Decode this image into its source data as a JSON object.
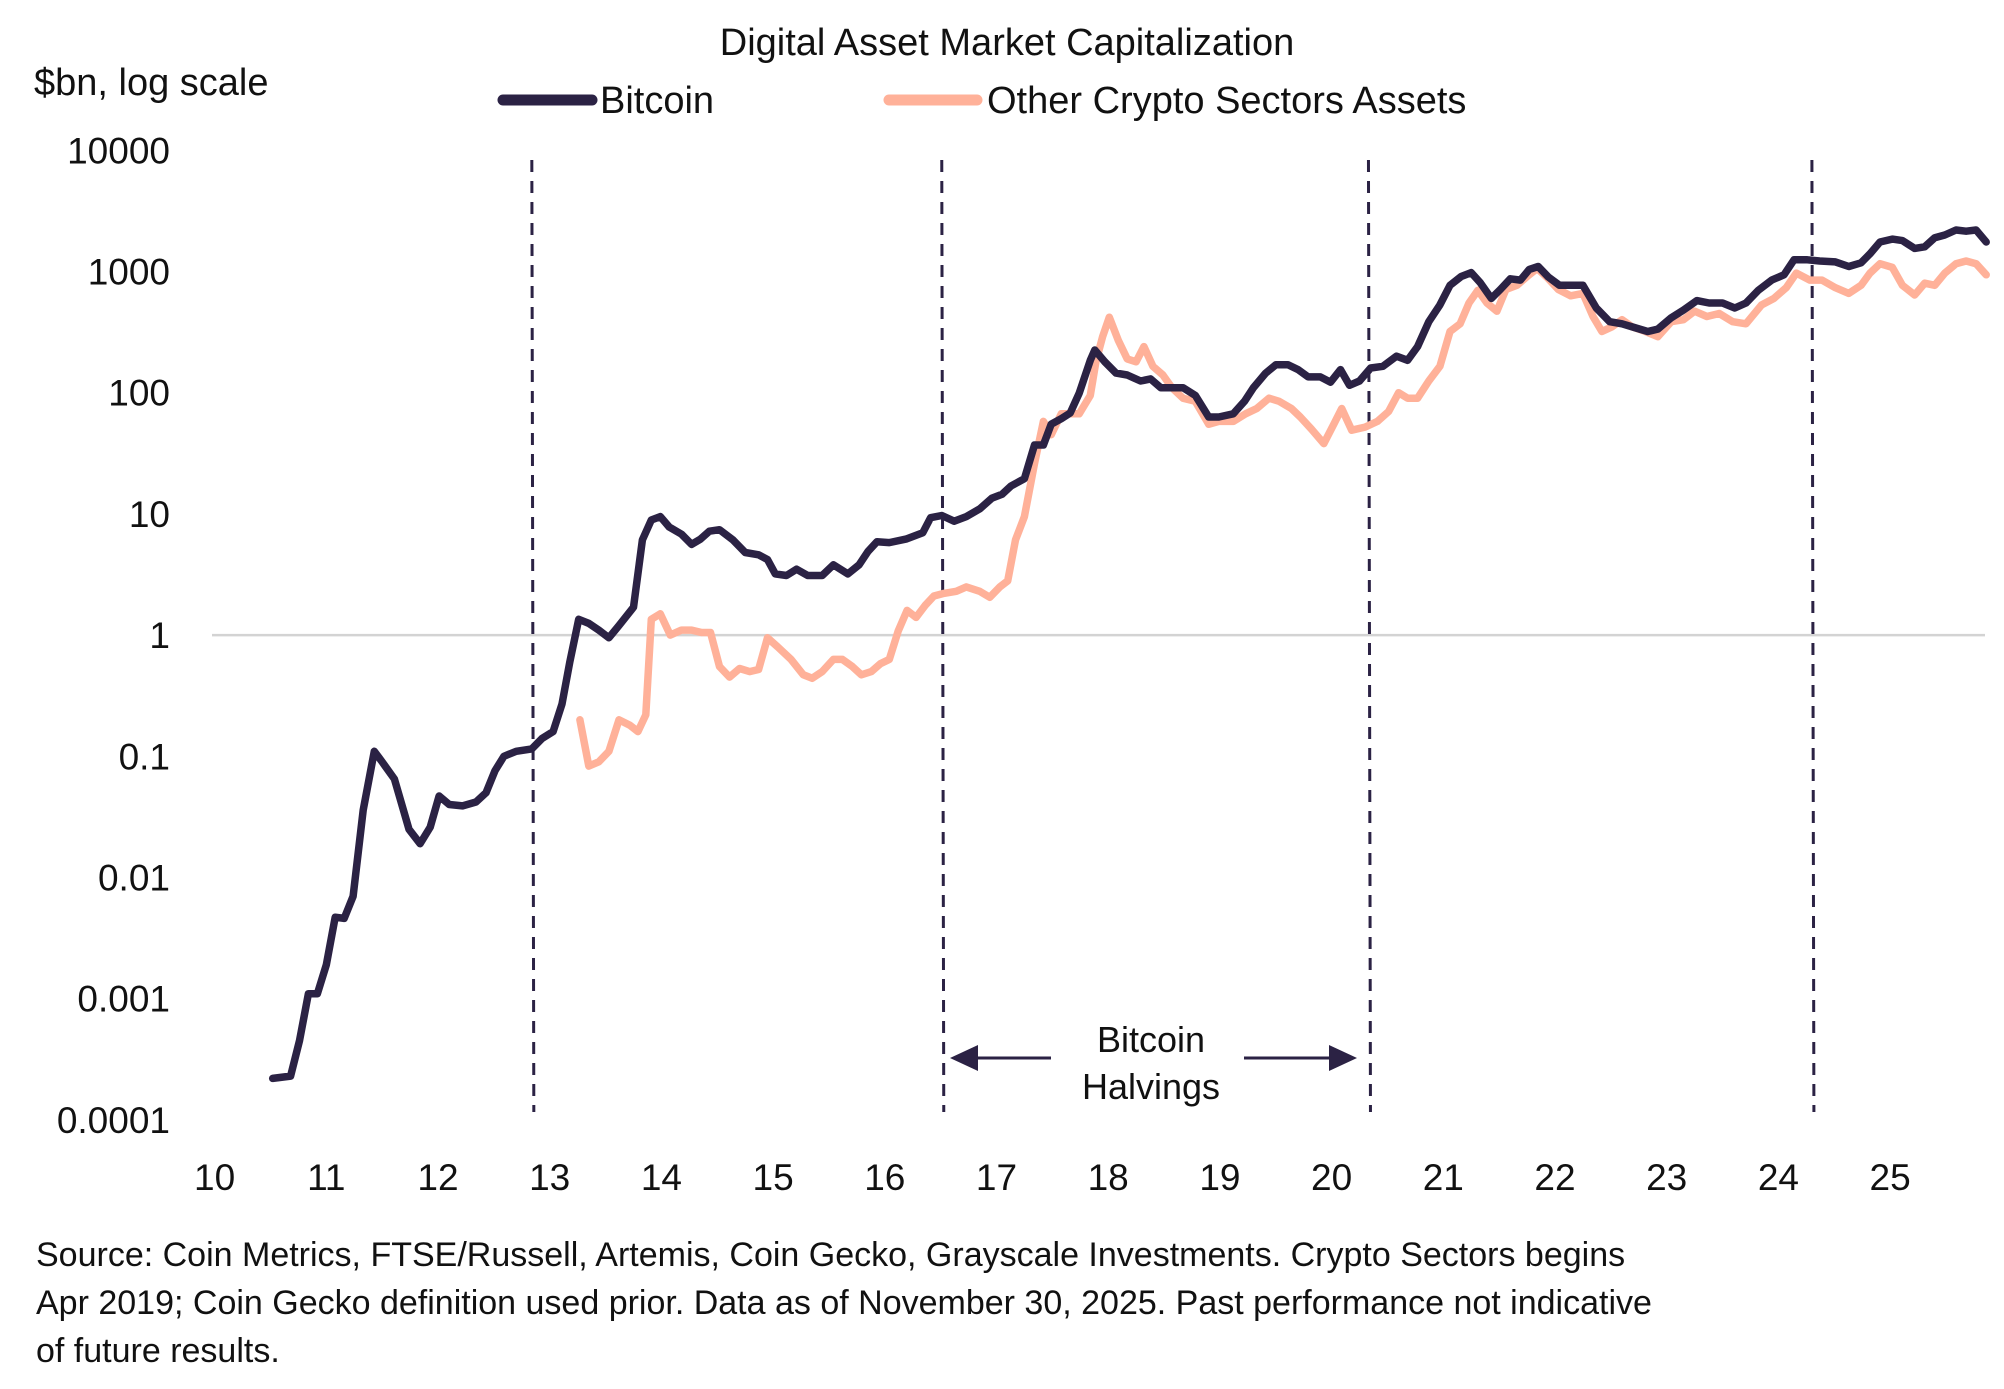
{
  "chart_data": {
    "type": "line",
    "title": "Digital Asset Market Capitalization",
    "ylabel": "$bn, log scale",
    "xlabel": "",
    "y_scale": "log",
    "ylim": [
      0.0001,
      10000
    ],
    "xlim": [
      2010,
      2025.9
    ],
    "y_ticks": [
      "10000",
      "1000",
      "100",
      "10",
      "1",
      "0.1",
      "0.01",
      "0.001",
      "0.0001"
    ],
    "y_tick_values": [
      10000,
      1000,
      100,
      10,
      1,
      0.1,
      0.01,
      0.001,
      0.0001
    ],
    "x_ticks": [
      "10",
      "11",
      "12",
      "13",
      "14",
      "15",
      "16",
      "17",
      "18",
      "19",
      "20",
      "21",
      "22",
      "23",
      "24",
      "25"
    ],
    "x_tick_values": [
      2010,
      2011,
      2012,
      2013,
      2014,
      2015,
      2016,
      2017,
      2018,
      2019,
      2020,
      2021,
      2022,
      2023,
      2024,
      2025
    ],
    "grid": "horizontal line at 1 only",
    "legend_placement": "top-center",
    "colors": {
      "bitcoin": "#2b2244",
      "other": "#ffb199",
      "halving": "#2b2244",
      "gridline": "#d3d3d3"
    },
    "series": [
      {
        "name": "Bitcoin",
        "x": [
          2010.52,
          2010.68,
          2010.76,
          2010.84,
          2010.92,
          2011.0,
          2011.08,
          2011.16,
          2011.24,
          2011.33,
          2011.43,
          2011.5,
          2011.61,
          2011.74,
          2011.84,
          2011.93,
          2012.01,
          2012.1,
          2012.22,
          2012.34,
          2012.43,
          2012.51,
          2012.59,
          2012.7,
          2012.84,
          2012.93,
          2013.03,
          2013.11,
          2013.18,
          2013.26,
          2013.35,
          2013.44,
          2013.53,
          2013.62,
          2013.75,
          2013.83,
          2013.91,
          2013.99,
          2014.07,
          2014.18,
          2014.27,
          2014.35,
          2014.43,
          2014.52,
          2014.64,
          2014.75,
          2014.87,
          2014.95,
          2015.02,
          2015.12,
          2015.21,
          2015.31,
          2015.44,
          2015.54,
          2015.67,
          2015.77,
          2015.85,
          2015.93,
          2016.04,
          2016.19,
          2016.34,
          2016.41,
          2016.51,
          2016.62,
          2016.73,
          2016.85,
          2016.96,
          2017.05,
          2017.13,
          2017.25,
          2017.34,
          2017.42,
          2017.49,
          2017.58,
          2017.66,
          2017.74,
          2017.84,
          2017.88,
          2017.97,
          2018.07,
          2018.17,
          2018.29,
          2018.38,
          2018.47,
          2018.57,
          2018.67,
          2018.78,
          2018.9,
          2018.99,
          2019.12,
          2019.22,
          2019.3,
          2019.41,
          2019.5,
          2019.61,
          2019.7,
          2019.79,
          2019.9,
          2019.99,
          2020.08,
          2020.16,
          2020.25,
          2020.35,
          2020.46,
          2020.58,
          2020.68,
          2020.77,
          2020.87,
          2020.97,
          2021.06,
          2021.16,
          2021.25,
          2021.33,
          2021.43,
          2021.51,
          2021.6,
          2021.69,
          2021.77,
          2021.85,
          2021.94,
          2022.04,
          2022.14,
          2022.25,
          2022.37,
          2022.49,
          2022.6,
          2022.71,
          2022.83,
          2022.92,
          2023.04,
          2023.15,
          2023.27,
          2023.38,
          2023.5,
          2023.61,
          2023.71,
          2023.82,
          2023.94,
          2024.05,
          2024.14,
          2024.26,
          2024.37,
          2024.51,
          2024.63,
          2024.74,
          2024.82,
          2024.91,
          2025.02,
          2025.11,
          2025.22,
          2025.31,
          2025.4,
          2025.49,
          2025.59,
          2025.68,
          2025.77,
          2025.86
        ],
        "values": [
          0.00022,
          0.00023,
          0.00045,
          0.0011,
          0.0011,
          0.0019,
          0.0047,
          0.0046,
          0.007,
          0.036,
          0.11,
          0.09,
          0.065,
          0.025,
          0.019,
          0.026,
          0.047,
          0.04,
          0.039,
          0.042,
          0.05,
          0.076,
          0.1,
          0.11,
          0.115,
          0.14,
          0.16,
          0.27,
          0.6,
          1.35,
          1.25,
          1.1,
          0.95,
          1.2,
          1.7,
          6.1,
          8.9,
          9.5,
          7.8,
          6.8,
          5.6,
          6.2,
          7.2,
          7.4,
          6.1,
          4.8,
          4.6,
          4.2,
          3.2,
          3.1,
          3.5,
          3.1,
          3.1,
          3.8,
          3.2,
          3.8,
          4.9,
          5.9,
          5.8,
          6.2,
          7,
          9.3,
          9.7,
          8.7,
          9.5,
          11,
          13.5,
          14.5,
          17,
          19.5,
          37,
          37,
          55,
          61,
          68,
          99,
          185,
          225,
          180,
          145,
          140,
          125,
          130,
          110,
          110,
          110,
          95,
          63,
          63,
          67,
          85,
          110,
          145,
          170,
          170,
          155,
          135,
          135,
          122,
          155,
          115,
          125,
          160,
          165,
          200,
          185,
          240,
          385,
          530,
          770,
          910,
          980,
          810,
          600,
          710,
          870,
          850,
          1040,
          1100,
          900,
          770,
          770,
          770,
          500,
          385,
          370,
          345,
          320,
          335,
          415,
          480,
          575,
          550,
          550,
          500,
          550,
          700,
          850,
          940,
          1250,
          1250,
          1220,
          1200,
          1100,
          1180,
          1400,
          1750,
          1850,
          1800,
          1550,
          1600,
          1900,
          2000,
          2200,
          2150,
          2200,
          1750
        ]
      },
      {
        "name": "Other Crypto Sectors Assets",
        "x": [
          2013.27,
          2013.35,
          2013.44,
          2013.53,
          2013.62,
          2013.72,
          2013.79,
          2013.86,
          2013.91,
          2013.99,
          2014.08,
          2014.18,
          2014.27,
          2014.36,
          2014.44,
          2014.52,
          2014.61,
          2014.7,
          2014.79,
          2014.87,
          2014.95,
          2015.04,
          2015.16,
          2015.27,
          2015.35,
          2015.44,
          2015.54,
          2015.62,
          2015.71,
          2015.79,
          2015.88,
          2015.96,
          2016.04,
          2016.12,
          2016.2,
          2016.28,
          2016.36,
          2016.44,
          2016.52,
          2016.64,
          2016.73,
          2016.85,
          2016.94,
          2017.03,
          2017.1,
          2017.17,
          2017.25,
          2017.34,
          2017.42,
          2017.49,
          2017.58,
          2017.66,
          2017.74,
          2017.84,
          2017.89,
          2017.95,
          2018.01,
          2018.09,
          2018.17,
          2018.25,
          2018.32,
          2018.4,
          2018.49,
          2018.57,
          2018.67,
          2018.78,
          2018.9,
          2018.99,
          2019.12,
          2019.23,
          2019.33,
          2019.44,
          2019.53,
          2019.64,
          2019.72,
          2019.82,
          2019.93,
          2020.02,
          2020.09,
          2020.18,
          2020.3,
          2020.41,
          2020.51,
          2020.6,
          2020.68,
          2020.77,
          2020.87,
          2020.97,
          2021.06,
          2021.15,
          2021.23,
          2021.31,
          2021.39,
          2021.48,
          2021.56,
          2021.66,
          2021.75,
          2021.84,
          2021.93,
          2022.03,
          2022.14,
          2022.25,
          2022.34,
          2022.42,
          2022.51,
          2022.6,
          2022.69,
          2022.81,
          2022.92,
          2023.04,
          2023.15,
          2023.25,
          2023.36,
          2023.47,
          2023.59,
          2023.71,
          2023.85,
          2023.96,
          2024.07,
          2024.16,
          2024.28,
          2024.39,
          2024.51,
          2024.63,
          2024.74,
          2024.82,
          2024.91,
          2025.02,
          2025.11,
          2025.22,
          2025.31,
          2025.4,
          2025.49,
          2025.59,
          2025.68,
          2025.77,
          2025.86
        ],
        "values": [
          0.2,
          0.083,
          0.09,
          0.11,
          0.2,
          0.18,
          0.16,
          0.22,
          1.35,
          1.5,
          1.0,
          1.1,
          1.1,
          1.05,
          1.05,
          0.55,
          0.45,
          0.53,
          0.5,
          0.52,
          0.95,
          0.8,
          0.63,
          0.47,
          0.44,
          0.5,
          0.63,
          0.63,
          0.55,
          0.47,
          0.5,
          0.58,
          0.63,
          1.08,
          1.6,
          1.4,
          1.75,
          2.1,
          2.2,
          2.3,
          2.5,
          2.3,
          2.05,
          2.5,
          2.8,
          6.1,
          9.5,
          26,
          58,
          45,
          67,
          67,
          67,
          95,
          180,
          290,
          420,
          270,
          190,
          180,
          240,
          165,
          140,
          110,
          90,
          85,
          55,
          58,
          58,
          67,
          74,
          90,
          85,
          74,
          63,
          50,
          38,
          55,
          74,
          49,
          52,
          58,
          70,
          100,
          90,
          90,
          125,
          165,
          320,
          370,
          550,
          700,
          550,
          470,
          710,
          770,
          910,
          1060,
          890,
          710,
          630,
          660,
          425,
          320,
          350,
          400,
          350,
          320,
          290,
          385,
          400,
          470,
          425,
          450,
          385,
          370,
          530,
          600,
          735,
          970,
          850,
          850,
          735,
          660,
          770,
          970,
          1160,
          1080,
          770,
          640,
          800,
          770,
          970,
          1160,
          1220,
          1160,
          940
        ]
      }
    ],
    "annotations": {
      "halving_dates": [
        2012.84,
        2016.51,
        2020.33,
        2024.3
      ],
      "label_line1": "Bitcoin",
      "label_line2": "Halvings"
    }
  },
  "footer": {
    "line1": "Source: Coin Metrics, FTSE/Russell, Artemis, Coin Gecko, Grayscale Investments. Crypto Sectors begins",
    "line2": "Apr 2019; Coin Gecko definition used prior. Data as of November 30, 2025. Past performance not indicative",
    "line3": "of future results."
  }
}
